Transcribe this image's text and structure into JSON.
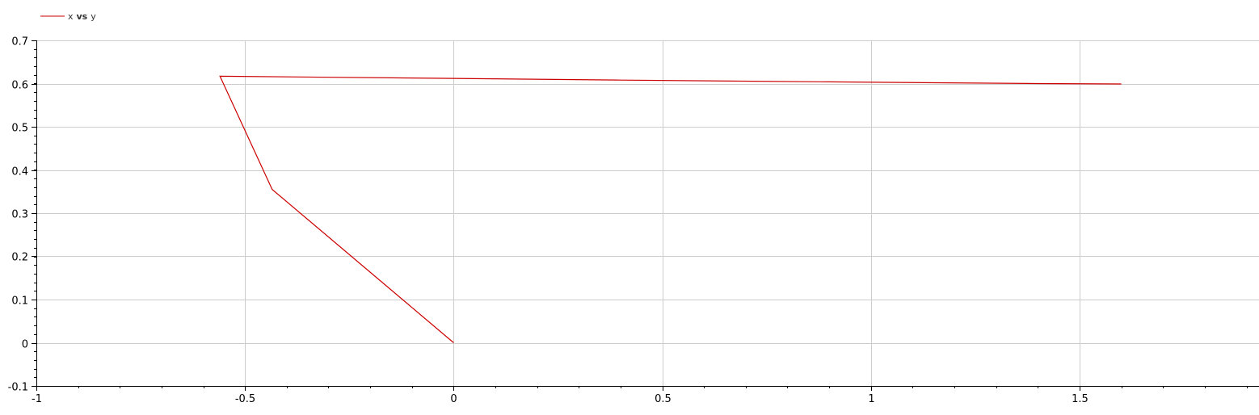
{
  "chart_data": {
    "type": "line",
    "legend": {
      "position": "top-left",
      "parts": [
        "x",
        "vs",
        "y"
      ]
    },
    "series": [
      {
        "name": "x vs y",
        "color": "#cc0000",
        "x": [
          0.0,
          -0.435,
          -0.56,
          0.0,
          0.4,
          0.9,
          1.4,
          1.6
        ],
        "y": [
          0.0,
          0.355,
          0.617,
          0.612,
          0.608,
          0.604,
          0.6,
          0.599
        ]
      }
    ],
    "xlim": [
      -1,
      1.93
    ],
    "ylim": [
      -0.1,
      0.7
    ],
    "x_ticks": [
      -1,
      -0.5,
      0,
      0.5,
      1,
      1.5
    ],
    "x_tick_labels": [
      "-1",
      "-0.5",
      "0",
      "0.5",
      "1",
      "1.5"
    ],
    "y_ticks": [
      -0.1,
      0,
      0.1,
      0.2,
      0.3,
      0.4,
      0.5,
      0.6,
      0.7
    ],
    "y_tick_labels": [
      "-0.1",
      "0",
      "0.1",
      "0.2",
      "0.3",
      "0.4",
      "0.5",
      "0.6",
      "0.7"
    ],
    "x_minor_step": 0.1,
    "y_minor_step": 0.02,
    "grid": true,
    "grid_color": "#cccccc",
    "axis_color": "#000000"
  }
}
